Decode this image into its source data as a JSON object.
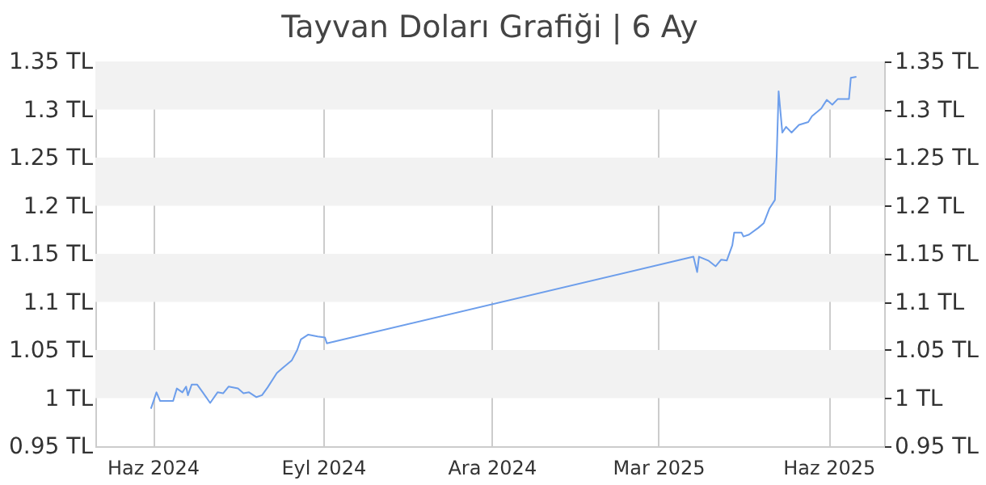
{
  "chart_data": {
    "type": "line",
    "title": "Tayvan Doları Grafiği | 6 Ay",
    "x": [
      "2024-05-31",
      "2024-06-03",
      "2024-06-05",
      "2024-06-12",
      "2024-06-14",
      "2024-06-17",
      "2024-06-19",
      "2024-06-20",
      "2024-06-22",
      "2024-06-25",
      "2024-06-28",
      "2024-07-02",
      "2024-07-06",
      "2024-07-09",
      "2024-07-12",
      "2024-07-17",
      "2024-07-20",
      "2024-07-23",
      "2024-07-27",
      "2024-07-30",
      "2024-08-02",
      "2024-08-07",
      "2024-08-10",
      "2024-08-15",
      "2024-08-18",
      "2024-08-20",
      "2024-08-24",
      "2024-08-29",
      "2024-09-02",
      "2024-09-03",
      "2025-03-20",
      "2025-03-22",
      "2025-03-23",
      "2025-03-28",
      "2025-04-01",
      "2025-04-04",
      "2025-04-07",
      "2025-04-10",
      "2025-04-11",
      "2025-04-15",
      "2025-04-16",
      "2025-04-19",
      "2025-04-24",
      "2025-04-27",
      "2025-04-30",
      "2025-05-03",
      "2025-05-04",
      "2025-05-05",
      "2025-05-07",
      "2025-05-09",
      "2025-05-12",
      "2025-05-16",
      "2025-05-21",
      "2025-05-23",
      "2025-05-28",
      "2025-05-31",
      "2025-06-03",
      "2025-06-06",
      "2025-06-12",
      "2025-06-13",
      "2025-06-16"
    ],
    "series": [
      {
        "color": "#6d9eeb",
        "values": [
          0.989,
          1.006,
          0.997,
          0.997,
          1.01,
          1.006,
          1.012,
          1.003,
          1.014,
          1.014,
          1.006,
          0.995,
          1.006,
          1.005,
          1.012,
          1.01,
          1.005,
          1.006,
          1.001,
          1.003,
          1.011,
          1.026,
          1.031,
          1.039,
          1.05,
          1.061,
          1.066,
          1.064,
          1.063,
          1.057,
          1.147,
          1.131,
          1.147,
          1.143,
          1.137,
          1.144,
          1.143,
          1.159,
          1.172,
          1.172,
          1.168,
          1.17,
          1.177,
          1.182,
          1.197,
          1.206,
          1.254,
          1.319,
          1.276,
          1.282,
          1.276,
          1.284,
          1.287,
          1.293,
          1.301,
          1.31,
          1.305,
          1.311,
          1.311,
          1.333,
          1.334
        ]
      }
    ],
    "xlim": [
      "2024-05-01",
      "2025-07-01"
    ],
    "xticks": [
      {
        "value": "2024-06-01",
        "label": "Haz 2024"
      },
      {
        "value": "2024-09-01",
        "label": "Eyl 2024"
      },
      {
        "value": "2024-12-01",
        "label": "Ara 2024"
      },
      {
        "value": "2025-03-01",
        "label": "Mar 2025"
      },
      {
        "value": "2025-06-01",
        "label": "Haz 2025"
      }
    ],
    "ylim": [
      0.95,
      1.35
    ],
    "yticks": [
      {
        "value": 0.95,
        "label": "0.95 TL"
      },
      {
        "value": 1,
        "label": "1 TL"
      },
      {
        "value": 1.05,
        "label": "1.05 TL"
      },
      {
        "value": 1.1,
        "label": "1.1 TL"
      },
      {
        "value": 1.15,
        "label": "1.15 TL"
      },
      {
        "value": 1.2,
        "label": "1.2 TL"
      },
      {
        "value": 1.25,
        "label": "1.25 TL"
      },
      {
        "value": 1.3,
        "label": "1.3 TL"
      },
      {
        "value": 1.35,
        "label": "1.35 TL"
      }
    ],
    "y2lim": [
      0.95,
      1.35
    ],
    "y2ticks": [
      {
        "value": 0.95,
        "label": "0.95 TL"
      },
      {
        "value": 1,
        "label": "1 TL"
      },
      {
        "value": 1.05,
        "label": "1.05 TL"
      },
      {
        "value": 1.1,
        "label": "1.1 TL"
      },
      {
        "value": 1.15,
        "label": "1.15 TL"
      },
      {
        "value": 1.2,
        "label": "1.2 TL"
      },
      {
        "value": 1.25,
        "label": "1.25 TL"
      },
      {
        "value": 1.3,
        "label": "1.3 TL"
      },
      {
        "value": 1.35,
        "label": "1.35 TL"
      }
    ],
    "bands": [
      {
        "axis": "y",
        "from": 1.0,
        "to": 1.05,
        "color": "#f2f2f2"
      },
      {
        "axis": "y",
        "from": 1.1,
        "to": 1.15,
        "color": "#f2f2f2"
      },
      {
        "axis": "y",
        "from": 1.2,
        "to": 1.25,
        "color": "#f2f2f2"
      },
      {
        "axis": "y",
        "from": 1.3,
        "to": 1.35,
        "color": "#f2f2f2"
      }
    ],
    "grid": "x",
    "marker": "none",
    "line_style": "solid"
  }
}
